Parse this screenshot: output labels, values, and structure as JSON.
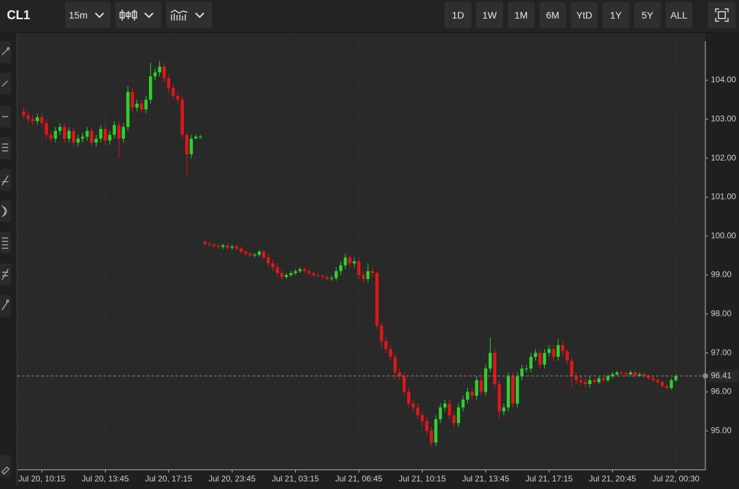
{
  "toolbar": {
    "symbol": "CL1",
    "interval": "15m",
    "ranges": [
      "1D",
      "1W",
      "1M",
      "6M",
      "YtD",
      "1Y",
      "5Y",
      "ALL"
    ]
  },
  "chart_data": {
    "type": "candlestick",
    "up_color": "#2fd12f",
    "down_color": "#e0161b",
    "grid": true,
    "categories": [
      null,
      null,
      null,
      null,
      "Jul 20, 10:15",
      null,
      null,
      null,
      null,
      null,
      null,
      null,
      null,
      null,
      null,
      null,
      null,
      null,
      "Jul 20, 13:45",
      null,
      null,
      null,
      null,
      null,
      null,
      null,
      null,
      null,
      null,
      null,
      null,
      null,
      "Jul 20, 17:15",
      null,
      null,
      null,
      null,
      null,
      null,
      null,
      null,
      null,
      null,
      null,
      null,
      null,
      "Jul 20, 23:45",
      null,
      null,
      null,
      null,
      null,
      null,
      null,
      null,
      null,
      null,
      null,
      null,
      null,
      "Jul 21, 03:15",
      null,
      null,
      null,
      null,
      null,
      null,
      null,
      null,
      null,
      null,
      null,
      null,
      null,
      "Jul 21, 06:45",
      null,
      null,
      null,
      null,
      null,
      null,
      null,
      null,
      null,
      null,
      null,
      null,
      null,
      "Jul 21, 10:15",
      null,
      null,
      null,
      null,
      null,
      null,
      null,
      null,
      null,
      null,
      null,
      null,
      null,
      "Jul 21, 13:45",
      null,
      null,
      null,
      null,
      null,
      null,
      null,
      null,
      null,
      null,
      null,
      null,
      null,
      "Jul 21, 17:15",
      null,
      null,
      null,
      null,
      null,
      null,
      null,
      null,
      null,
      null,
      null,
      null,
      null,
      "Jul 21, 20:45",
      null,
      null,
      null,
      null,
      null,
      null,
      null,
      null,
      null,
      null,
      null,
      null,
      null,
      "Jul 22, 00:30"
    ],
    "open": [
      103.2,
      103.1,
      103.0,
      102.95,
      103.05,
      102.9,
      102.6,
      102.5,
      102.7,
      102.8,
      102.5,
      102.7,
      102.4,
      102.5,
      102.55,
      102.7,
      102.4,
      102.5,
      102.75,
      102.45,
      102.6,
      102.85,
      102.5,
      102.8,
      103.7,
      103.3,
      103.4,
      103.25,
      103.5,
      104.1,
      104.2,
      104.35,
      104.05,
      103.8,
      103.6,
      103.5,
      102.6,
      102.1,
      102.5,
      102.55,
      99.85,
      99.8,
      99.78,
      99.75,
      99.72,
      99.76,
      99.7,
      99.73,
      99.68,
      99.6,
      99.55,
      99.5,
      99.52,
      99.6,
      99.45,
      99.3,
      99.2,
      99.05,
      98.95,
      99.0,
      99.05,
      99.1,
      99.15,
      99.1,
      99.05,
      99.0,
      98.98,
      98.95,
      98.9,
      98.92,
      99.1,
      99.25,
      99.45,
      99.3,
      99.35,
      99.0,
      98.9,
      99.1,
      99.05,
      97.7,
      97.3,
      97.1,
      96.9,
      96.5,
      96.4,
      96.0,
      95.7,
      95.6,
      95.4,
      95.25,
      95.0,
      94.7,
      95.3,
      95.6,
      95.7,
      95.4,
      95.2,
      95.6,
      95.8,
      96.0,
      95.9,
      96.3,
      96.0,
      96.6,
      97.0,
      96.2,
      95.5,
      95.6,
      96.4,
      95.7,
      96.4,
      96.6,
      96.6,
      96.9,
      97.0,
      96.7,
      97.0,
      97.1,
      96.9,
      97.2,
      97.05,
      96.8,
      96.4,
      96.3,
      96.25,
      96.2,
      96.3,
      96.25,
      96.35,
      96.3,
      96.4,
      96.45,
      96.5,
      96.48,
      96.45,
      96.5,
      96.42,
      96.45,
      96.4,
      96.35,
      96.3,
      96.25,
      96.15,
      96.1,
      96.3
    ],
    "high": [
      103.3,
      103.2,
      103.1,
      103.15,
      103.15,
      103.0,
      102.7,
      102.8,
      102.9,
      102.9,
      102.8,
      102.8,
      102.6,
      102.65,
      102.8,
      102.8,
      102.6,
      102.85,
      102.85,
      102.7,
      102.95,
      102.95,
      102.9,
      103.85,
      103.8,
      103.5,
      103.5,
      103.6,
      104.45,
      104.3,
      104.5,
      104.45,
      104.15,
      103.9,
      103.7,
      103.6,
      102.65,
      102.6,
      102.6,
      102.6,
      99.9,
      99.85,
      99.83,
      99.8,
      99.81,
      99.81,
      99.78,
      99.78,
      99.73,
      99.65,
      99.6,
      99.57,
      99.65,
      99.65,
      99.55,
      99.4,
      99.3,
      99.15,
      99.05,
      99.1,
      99.15,
      99.2,
      99.2,
      99.15,
      99.1,
      99.05,
      99.03,
      99.0,
      98.97,
      99.2,
      99.35,
      99.55,
      99.5,
      99.45,
      99.45,
      99.1,
      99.3,
      99.2,
      99.1,
      97.8,
      97.4,
      97.2,
      97.0,
      96.6,
      96.5,
      96.1,
      95.8,
      95.7,
      95.5,
      95.35,
      95.1,
      95.4,
      95.7,
      95.8,
      95.8,
      95.5,
      95.7,
      95.9,
      96.1,
      96.1,
      96.4,
      96.5,
      96.7,
      97.4,
      97.1,
      96.3,
      95.7,
      96.5,
      96.5,
      96.5,
      96.7,
      96.7,
      97.0,
      97.1,
      97.1,
      97.1,
      97.2,
      97.2,
      97.35,
      97.3,
      97.1,
      96.9,
      96.5,
      96.4,
      96.35,
      96.4,
      96.35,
      96.4,
      96.4,
      96.45,
      96.5,
      96.55,
      96.55,
      96.53,
      96.55,
      96.55,
      96.5,
      96.5,
      96.45,
      96.4,
      96.35,
      96.3,
      96.2,
      96.35,
      96.45
    ],
    "low": [
      103.0,
      102.9,
      102.85,
      102.85,
      102.8,
      102.5,
      102.4,
      102.4,
      102.6,
      102.4,
      102.4,
      102.3,
      102.3,
      102.4,
      102.45,
      102.3,
      102.3,
      102.4,
      102.35,
      102.35,
      102.5,
      102.0,
      102.4,
      102.7,
      103.2,
      103.2,
      103.15,
      103.15,
      103.4,
      104.0,
      104.1,
      103.95,
      103.7,
      103.5,
      103.4,
      102.5,
      101.5,
      102.0,
      102.5,
      102.5,
      99.75,
      99.73,
      99.7,
      99.67,
      99.67,
      99.65,
      99.65,
      99.63,
      99.55,
      99.5,
      99.45,
      99.45,
      99.47,
      99.4,
      99.2,
      99.1,
      98.95,
      98.85,
      98.9,
      98.95,
      99.0,
      99.05,
      99.05,
      99.0,
      98.95,
      98.93,
      98.9,
      98.85,
      98.85,
      98.85,
      99.0,
      99.15,
      99.2,
      99.2,
      98.9,
      98.8,
      98.8,
      98.95,
      97.6,
      97.1,
      97.0,
      96.8,
      96.3,
      96.3,
      95.9,
      95.6,
      95.5,
      95.3,
      95.1,
      94.9,
      94.6,
      94.6,
      95.2,
      95.5,
      95.3,
      95.1,
      95.1,
      95.5,
      95.7,
      95.8,
      95.8,
      95.9,
      95.9,
      96.5,
      96.1,
      95.3,
      95.4,
      95.5,
      95.6,
      95.6,
      96.3,
      96.5,
      96.5,
      96.8,
      96.6,
      96.6,
      96.9,
      96.8,
      96.8,
      96.9,
      96.7,
      96.1,
      96.2,
      96.15,
      96.1,
      96.1,
      96.2,
      96.2,
      96.25,
      96.25,
      96.35,
      96.4,
      96.43,
      96.4,
      96.4,
      96.37,
      96.38,
      96.35,
      96.3,
      96.25,
      96.2,
      96.1,
      96.05,
      96.05,
      96.25
    ],
    "close": [
      103.1,
      103.0,
      102.95,
      103.05,
      102.9,
      102.6,
      102.5,
      102.7,
      102.8,
      102.5,
      102.7,
      102.4,
      102.5,
      102.55,
      102.7,
      102.4,
      102.5,
      102.75,
      102.45,
      102.6,
      102.85,
      102.5,
      102.8,
      103.7,
      103.3,
      103.4,
      103.25,
      103.5,
      104.1,
      104.2,
      104.35,
      104.05,
      103.8,
      103.6,
      103.5,
      102.6,
      102.1,
      102.5,
      102.55,
      102.55,
      99.8,
      99.78,
      99.75,
      99.72,
      99.76,
      99.7,
      99.73,
      99.68,
      99.6,
      99.55,
      99.5,
      99.52,
      99.6,
      99.45,
      99.3,
      99.2,
      99.05,
      98.95,
      99.0,
      99.05,
      99.1,
      99.15,
      99.1,
      99.05,
      99.0,
      98.98,
      98.95,
      98.9,
      98.92,
      99.1,
      99.25,
      99.45,
      99.3,
      99.35,
      99.0,
      98.9,
      99.1,
      99.05,
      97.7,
      97.3,
      97.1,
      96.9,
      96.5,
      96.4,
      96.0,
      95.7,
      95.6,
      95.4,
      95.25,
      95.0,
      94.7,
      95.3,
      95.6,
      95.7,
      95.4,
      95.2,
      95.6,
      95.8,
      96.0,
      95.9,
      96.3,
      96.0,
      96.6,
      97.0,
      96.2,
      95.5,
      95.6,
      96.4,
      95.7,
      96.4,
      96.6,
      96.6,
      96.9,
      97.0,
      96.7,
      97.0,
      97.1,
      96.9,
      97.2,
      97.05,
      96.8,
      96.4,
      96.3,
      96.25,
      96.2,
      96.3,
      96.25,
      96.35,
      96.3,
      96.4,
      96.45,
      96.5,
      96.48,
      96.45,
      96.5,
      96.42,
      96.45,
      96.4,
      96.35,
      96.3,
      96.25,
      96.15,
      96.1,
      96.3,
      96.41
    ],
    "ylim": [
      94.0,
      105.1
    ],
    "yticks": [
      {
        "value": 95,
        "label": "95.00"
      },
      {
        "value": 96,
        "label": "96.00"
      },
      {
        "value": 97,
        "label": "97.00"
      },
      {
        "value": 98,
        "label": "98.00"
      },
      {
        "value": 99,
        "label": "99.00"
      },
      {
        "value": 100,
        "label": "100.00"
      },
      {
        "value": 101,
        "label": "101.00"
      },
      {
        "value": 102,
        "label": "102.00"
      },
      {
        "value": 103,
        "label": "103.00"
      },
      {
        "value": 104,
        "label": "104.00"
      }
    ],
    "last_price": 96.41
  }
}
